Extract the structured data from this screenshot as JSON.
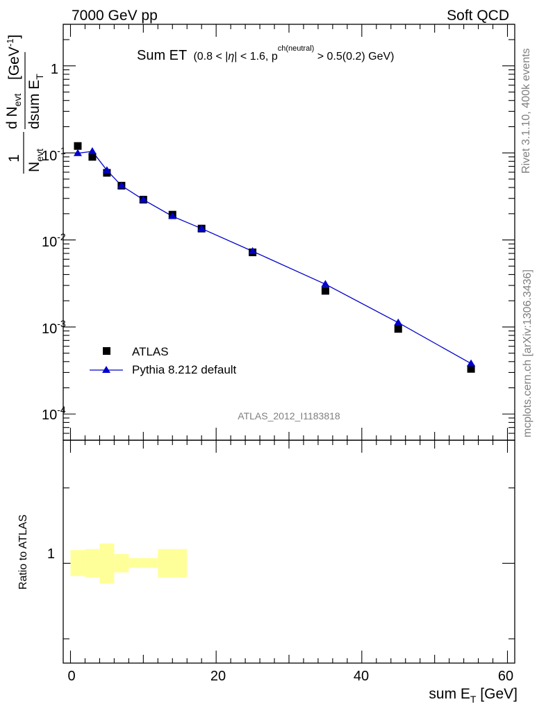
{
  "header": {
    "energy_label": "7000 GeV pp",
    "category_label": "Soft QCD"
  },
  "side": {
    "rivet_label": "Rivet 3.1.10,  400k events",
    "mcplots_label": "mcplots.cern.ch [arXiv:1306.3436]"
  },
  "main_panel": {
    "title_main": "Sum ET",
    "title_cut_a": "(0.8 < |",
    "title_eta": "η",
    "title_cut_b": "| < 1.6, p",
    "title_sup": "ch(neutral)",
    "title_cut_c": " > 0.5(0.2) GeV)",
    "analysis_label": "ATLAS_2012_I1183818",
    "ylabel_prefix": "1",
    "ylabel_n": "N",
    "ylabel_evt": "evt",
    "ylabel_dn": "d N",
    "ylabel_dsum": "dsum E",
    "ylabel_t": "T",
    "ylabel_unit": "[GeV",
    "ylabel_unit_sup": "-1",
    "ylabel_unit_end": "]",
    "ytick_labels": [
      {
        "base": "1",
        "exp": ""
      },
      {
        "base": "10",
        "exp": "-1"
      },
      {
        "base": "10",
        "exp": "-2"
      },
      {
        "base": "10",
        "exp": "-3"
      },
      {
        "base": "10",
        "exp": "-4"
      }
    ]
  },
  "ratio_panel": {
    "ylabel": "Ratio to ATLAS",
    "ytick_label": "1"
  },
  "xaxis": {
    "label_main": "sum E",
    "label_sub": "T",
    "label_unit": " [GeV]",
    "tick_labels": [
      "0",
      "20",
      "40",
      "60"
    ]
  },
  "legend": {
    "data_label": "ATLAS",
    "mc_label": "Pythia 8.212 default"
  },
  "colors": {
    "data": "#000000",
    "mc": "#0000cc",
    "band": "#ffff99"
  },
  "chart_data": {
    "type": "scatter",
    "x_range": [
      -1,
      61
    ],
    "y_scale": "log",
    "y_range": [
      5e-05,
      3
    ],
    "ratio_y_range": [
      0.4,
      3.1
    ],
    "series": [
      {
        "name": "ATLAS",
        "x": [
          1,
          3,
          5,
          7,
          10,
          14,
          18,
          25,
          35,
          45,
          55
        ],
        "y": [
          0.12,
          0.09,
          0.059,
          0.042,
          0.029,
          0.0195,
          0.0135,
          0.0072,
          0.0026,
          0.00095,
          0.00033
        ]
      },
      {
        "name": "Pythia 8.212 default",
        "x": [
          1,
          3,
          5,
          7,
          10,
          14,
          18,
          25,
          35,
          45,
          55
        ],
        "y": [
          0.099,
          0.104,
          0.063,
          0.042,
          0.029,
          0.0187,
          0.0135,
          0.0074,
          0.0031,
          0.00112,
          0.00038
        ]
      }
    ],
    "ratio_band": [
      {
        "x0": 0,
        "x1": 2,
        "lo": 0.89,
        "hi": 1.13
      },
      {
        "x0": 2,
        "x1": 4,
        "lo": 0.88,
        "hi": 1.14
      },
      {
        "x0": 4,
        "x1": 6,
        "lo": 0.83,
        "hi": 1.2
      },
      {
        "x0": 6,
        "x1": 8,
        "lo": 0.92,
        "hi": 1.09
      },
      {
        "x0": 8,
        "x1": 12,
        "lo": 0.96,
        "hi": 1.05
      },
      {
        "x0": 12,
        "x1": 16,
        "lo": 0.88,
        "hi": 1.14
      }
    ]
  }
}
